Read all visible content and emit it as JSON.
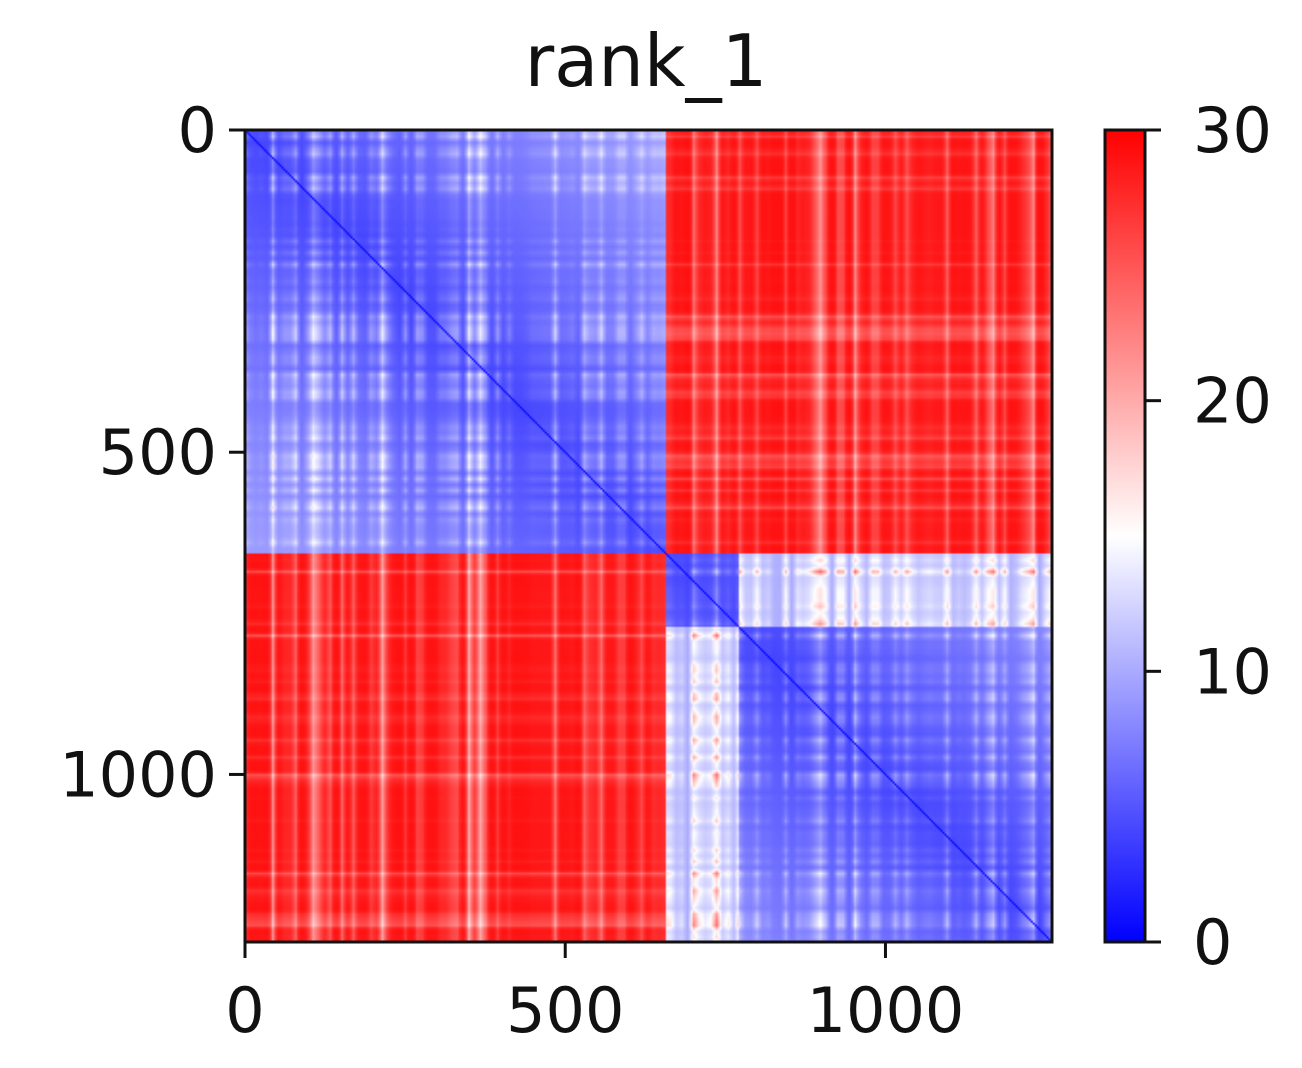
{
  "chart_data": {
    "type": "heatmap",
    "title": "rank_1",
    "xlabel": "",
    "ylabel": "",
    "n": 1260,
    "xlim": [
      0,
      1260
    ],
    "ylim": [
      1260,
      0
    ],
    "x_ticks": [
      {
        "value": 0,
        "label": "0"
      },
      {
        "value": 500,
        "label": "500"
      },
      {
        "value": 1000,
        "label": "1000"
      }
    ],
    "y_ticks": [
      {
        "value": 0,
        "label": "0"
      },
      {
        "value": 500,
        "label": "500"
      },
      {
        "value": 1000,
        "label": "1000"
      }
    ],
    "clusters": [
      {
        "start": 0,
        "end": 655
      },
      {
        "start": 655,
        "end": 770
      },
      {
        "start": 770,
        "end": 1260
      }
    ],
    "typical_values": {
      "within_cluster": 4,
      "between_major_groups": 29
    },
    "colorbar": {
      "colormap": "bwr",
      "vmin": 0,
      "vmax": 30,
      "ticks": [
        {
          "value": 0,
          "label": "0"
        },
        {
          "value": 10,
          "label": "10"
        },
        {
          "value": 20,
          "label": "20"
        },
        {
          "value": 30,
          "label": "30"
        }
      ],
      "colors": {
        "low": "#0000ff",
        "mid": "#ffffff",
        "high": "#ff0000"
      }
    },
    "grid": false
  }
}
